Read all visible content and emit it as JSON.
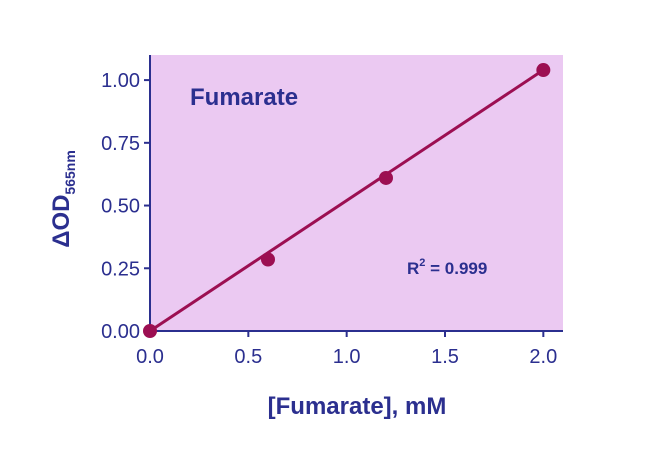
{
  "chart_data": {
    "type": "scatter",
    "title": "Fumarate",
    "xlabel": "[Fumarate], mM",
    "ylabel": {
      "main": "ΔOD",
      "subscript": "565nm"
    },
    "annotation": {
      "base": "R",
      "superscript": "2",
      "text": " = 0.999"
    },
    "xlim": [
      0,
      2.1
    ],
    "ylim": [
      0,
      1.1
    ],
    "x_ticks": [
      0,
      0.5,
      1.0,
      1.5,
      2.0
    ],
    "x_tick_labels": [
      "0.0",
      "0.5",
      "1.0",
      "1.5",
      "2.0"
    ],
    "y_ticks": [
      0,
      0.25,
      0.5,
      0.75,
      1.0
    ],
    "y_tick_labels": [
      "0.00",
      "0.25",
      "0.50",
      "0.75",
      "1.00"
    ],
    "series": [
      {
        "points": [
          {
            "x": 0,
            "y": 0.0
          },
          {
            "x": 0.6,
            "y": 0.285
          },
          {
            "x": 1.2,
            "y": 0.61
          },
          {
            "x": 2.0,
            "y": 1.04
          }
        ]
      }
    ],
    "fit_line": {
      "x": [
        0,
        2.0
      ],
      "y": [
        0,
        1.04
      ]
    },
    "grid": false,
    "colors": {
      "plot_background": "#ebc9f2",
      "axis": "#2b2f8f",
      "line": "#9c0f52",
      "marker": "#9c0f52",
      "text": "#2b2f8f"
    }
  }
}
